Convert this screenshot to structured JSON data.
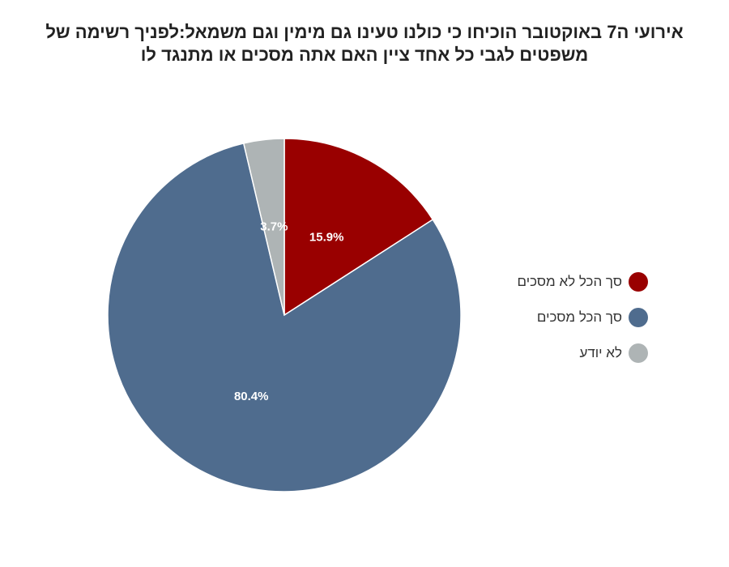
{
  "chart_data": {
    "type": "pie",
    "title_lines": [
      "אירועי ה7 באוקטובר הוכיחו כי כולנו טעינו גם מימין וגם משמאל:לפניך רשימה של",
      "משפטים  לגבי כל אחד ציין האם אתה מסכים או מתנגד לו"
    ],
    "slices": [
      {
        "label": "סך הכל לא מסכים",
        "value": 15.9,
        "value_label": "15.9%",
        "color": "#990000"
      },
      {
        "label": "סך הכל מסכים",
        "value": 80.4,
        "value_label": "80.4%",
        "color": "#4f6c8e"
      },
      {
        "label": "לא יודע",
        "value": 3.7,
        "value_label": "3.7%",
        "color": "#aeb4b5"
      }
    ],
    "start_angle": "12 o'clock",
    "direction": "clockwise",
    "legend_position": "right"
  }
}
